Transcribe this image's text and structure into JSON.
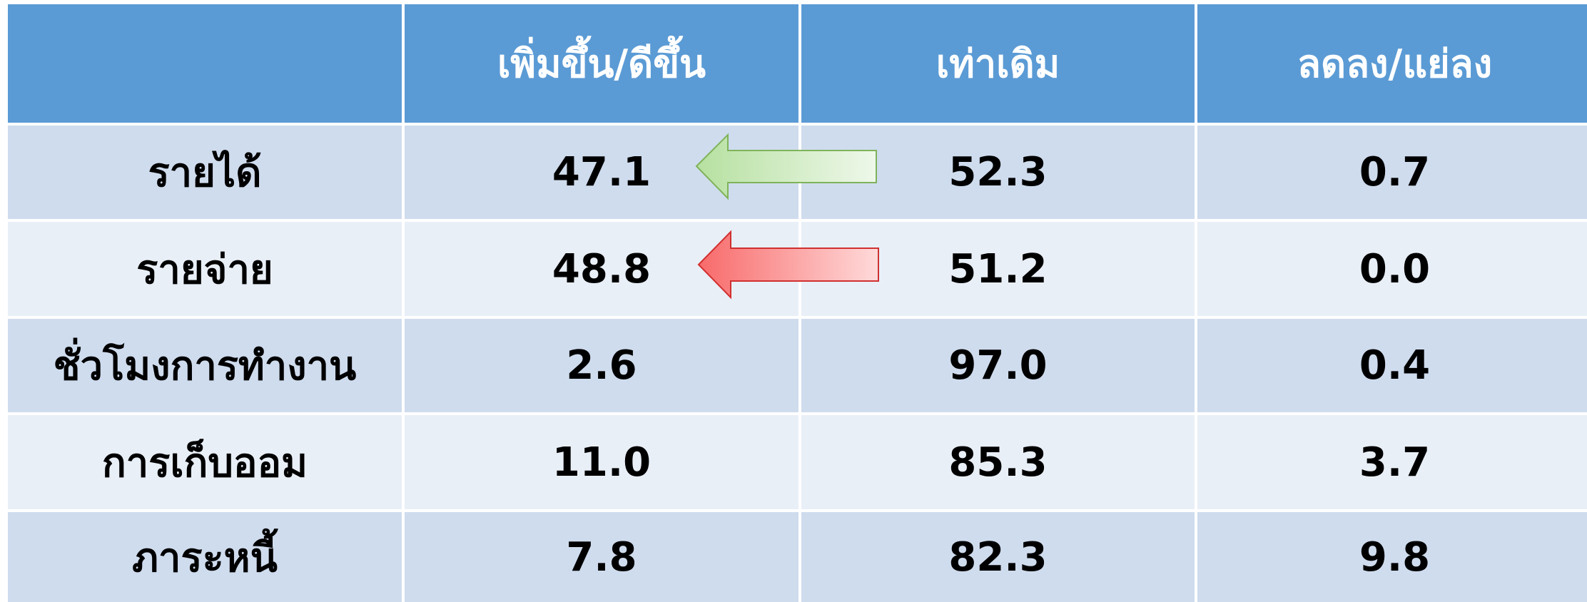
{
  "table": {
    "header": [
      "เพิ่มขึ้น/ดีขึ้น",
      "เท่าเดิม",
      "ลดลง/แย่ลง"
    ],
    "rows": [
      [
        "รายได้",
        "47.1",
        "52.3",
        "0.7"
      ],
      [
        "รายจ่าย",
        "48.8",
        "51.2",
        "0.0"
      ],
      [
        "ชั่วโมงการทำงาน",
        "2.6",
        "97.0",
        "0.4"
      ],
      [
        "การเก็บออม",
        "11.0",
        "85.3",
        "3.7"
      ],
      [
        "ภาระหนี้",
        "7.8",
        "82.3",
        "9.8"
      ]
    ]
  }
}
